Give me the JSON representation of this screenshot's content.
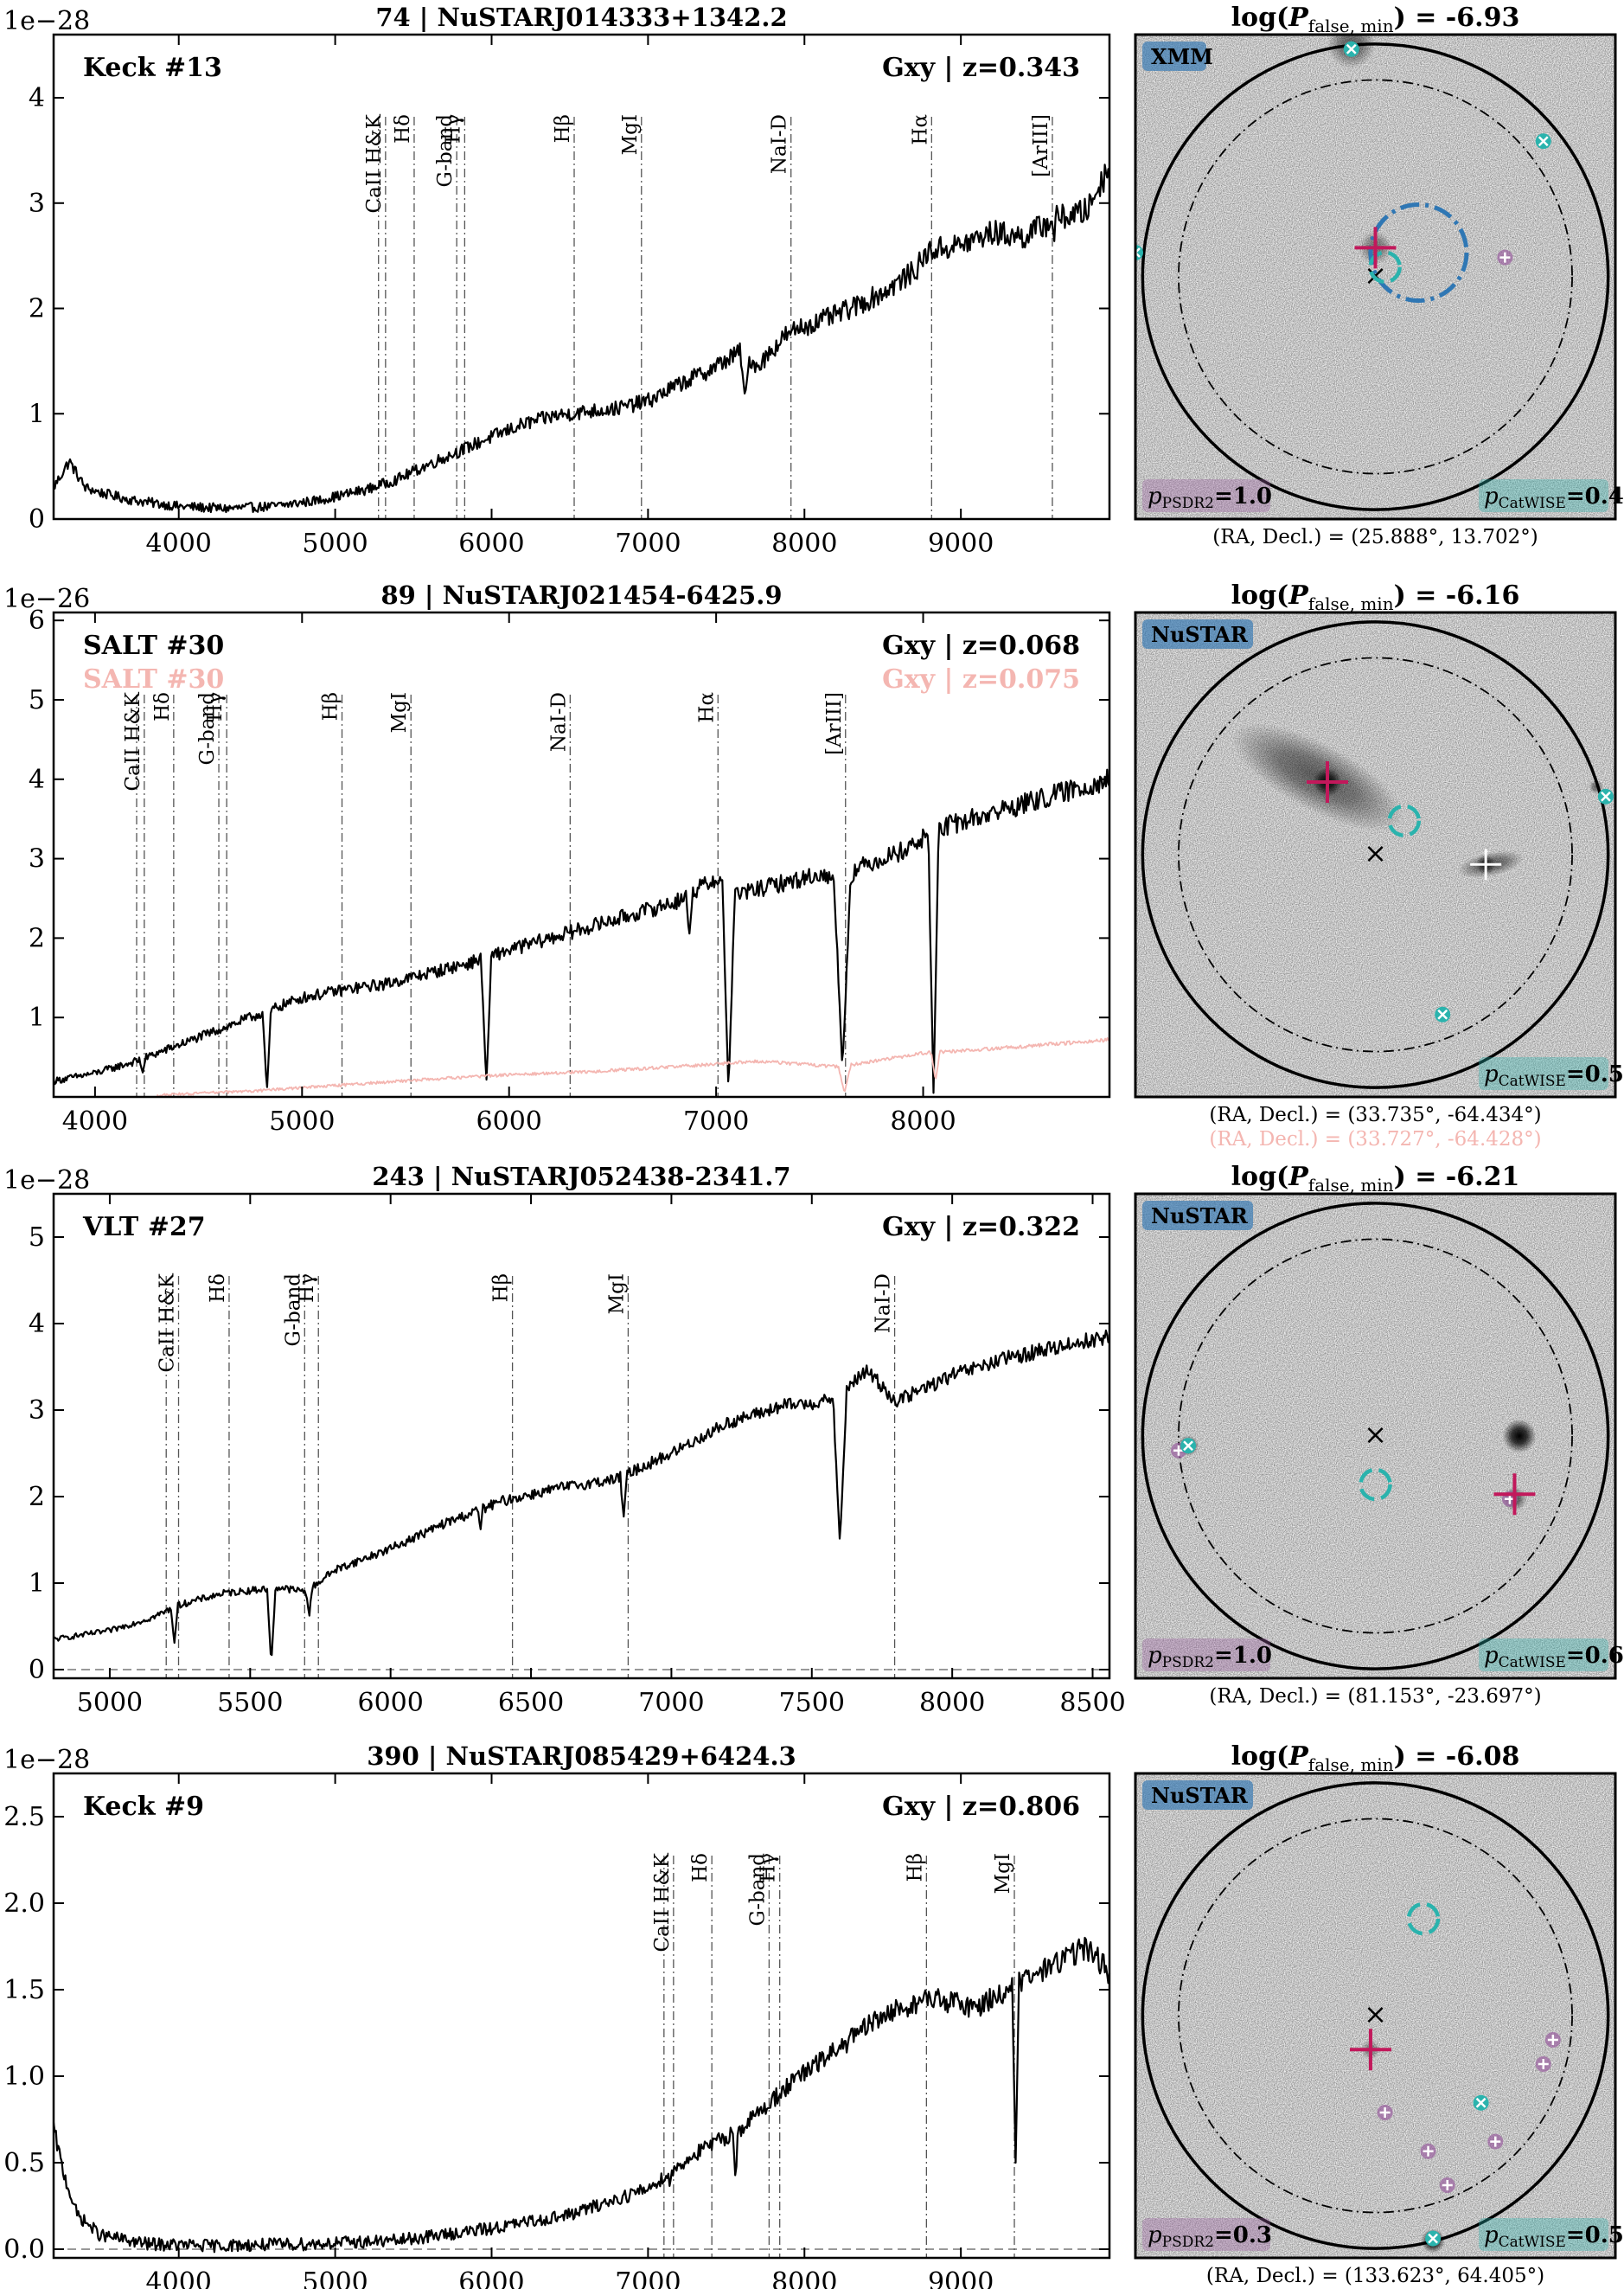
{
  "figure": {
    "colors": {
      "main": "#000000",
      "alt": "#f4b6b1",
      "magenta": "#c2185b",
      "cyan": "#2ab3ad",
      "blue": "#2f77b4",
      "purple": "#9a5fa0"
    }
  },
  "chart_data": [
    {
      "type": "line",
      "title": "74 | NuSTARJ014333+1342.2",
      "offset_text": "1e−28",
      "xlim": [
        3200,
        9950
      ],
      "ylim": [
        0,
        4.6
      ],
      "xticks": [
        4000,
        5000,
        6000,
        7000,
        8000,
        9000
      ],
      "xtick_labels": [
        "4000",
        "5000",
        "6000",
        "7000",
        "8000",
        "9000"
      ],
      "yticks": [
        0,
        1,
        2,
        3,
        4
      ],
      "ytick_labels": [
        "0",
        "1",
        "2",
        "3",
        "4"
      ],
      "zero_line": true,
      "labels": [
        {
          "text": "Keck #13",
          "pos": "top-left",
          "color": "#000000"
        },
        {
          "text": "Gxy | z=0.343",
          "pos": "top-right",
          "color": "#000000"
        }
      ],
      "spectral_lines": [
        {
          "name": "CaII H&K",
          "wl": [
            5277,
            5322
          ]
        },
        {
          "name": "Hδ",
          "wl": [
            5505
          ]
        },
        {
          "name": "G-band",
          "wl": [
            5777
          ]
        },
        {
          "name": "Hγ",
          "wl": [
            5828
          ]
        },
        {
          "name": "Hβ",
          "wl": [
            6528
          ]
        },
        {
          "name": "MgI",
          "wl": [
            6958
          ]
        },
        {
          "name": "NaI-D",
          "wl": [
            7914
          ]
        },
        {
          "name": "Hα",
          "wl": [
            8813
          ]
        },
        {
          "name": "[ArIII]",
          "wl": [
            9585
          ]
        }
      ],
      "series": [
        {
          "color": "#000000",
          "x": [
            3200,
            3300,
            3400,
            3500,
            3700,
            4000,
            4300,
            4600,
            4900,
            5200,
            5400,
            5600,
            5800,
            6000,
            6200,
            6400,
            6600,
            6800,
            7000,
            7200,
            7400,
            7600,
            7700,
            7900,
            8100,
            8300,
            8500,
            8700,
            8800,
            9000,
            9200,
            9400,
            9600,
            9800,
            9950
          ],
          "y": [
            0.3,
            0.55,
            0.3,
            0.25,
            0.18,
            0.12,
            0.1,
            0.12,
            0.18,
            0.28,
            0.38,
            0.52,
            0.65,
            0.78,
            0.9,
            0.98,
            1.02,
            1.05,
            1.12,
            1.28,
            1.42,
            1.6,
            1.45,
            1.78,
            1.88,
            2.0,
            2.15,
            2.35,
            2.55,
            2.6,
            2.72,
            2.68,
            2.85,
            2.92,
            3.35
          ],
          "dips": [
            [
              7620,
              1.15,
              30
            ],
            [
              7910,
              1.75,
              20
            ],
            [
              9595,
              2.6,
              10
            ]
          ],
          "noise": 0.1
        }
      ],
      "footer": [],
      "side": {
        "title_prefix": "log(",
        "title_sub": "false, min",
        "title_value": ") = -6.93",
        "tag": "XMM",
        "tag_color": "#2f77b4",
        "psdr2": "1.0",
        "catwise": "0.4",
        "coords": [
          {
            "text": "(RA, Decl.) = (25.888°, 13.702°)",
            "color": "#000000"
          }
        ],
        "blue_circle": [
          0.59,
          0.45,
          0.1
        ],
        "cyan_arc": [
          0.52,
          0.48
        ],
        "magenta_cross": [
          0.5,
          0.44
        ],
        "cyan_points": [
          [
            0.45,
            0.03
          ],
          [
            0.85,
            0.22
          ],
          [
            0.0,
            0.45
          ]
        ],
        "purple_points": [
          [
            0.77,
            0.46
          ]
        ],
        "blobs": [
          [
            0.45,
            0.02,
            0.05,
            0.55
          ],
          [
            0.5,
            0.44,
            0.035,
            0.45
          ]
        ]
      }
    },
    {
      "type": "line",
      "title": "89 | NuSTARJ021454-6425.9",
      "offset_text": "1e−26",
      "xlim": [
        3800,
        8900
      ],
      "ylim": [
        0,
        6.1
      ],
      "xticks": [
        4000,
        5000,
        6000,
        7000,
        8000
      ],
      "xtick_labels": [
        "4000",
        "5000",
        "6000",
        "7000",
        "8000"
      ],
      "yticks": [
        1,
        2,
        3,
        4,
        5,
        6
      ],
      "ytick_labels": [
        "1",
        "2",
        "3",
        "4",
        "5",
        "6"
      ],
      "zero_line": false,
      "labels": [
        {
          "text": "SALT #30",
          "pos": "top-left",
          "color": "#000000"
        },
        {
          "text": "Gxy | z=0.068",
          "pos": "top-right",
          "color": "#000000"
        },
        {
          "text": "SALT #30",
          "pos": "top-left-2",
          "color": "#f4b6b1"
        },
        {
          "text": "Gxy | z=0.075",
          "pos": "top-right-2",
          "color": "#f4b6b1"
        }
      ],
      "spectral_lines": [
        {
          "name": "CaII H&K",
          "wl": [
            4201,
            4238
          ]
        },
        {
          "name": "Hδ",
          "wl": [
            4380
          ]
        },
        {
          "name": "G-band",
          "wl": [
            4598
          ]
        },
        {
          "name": "Hγ",
          "wl": [
            4636
          ]
        },
        {
          "name": "Hβ",
          "wl": [
            5193
          ]
        },
        {
          "name": "MgI",
          "wl": [
            5526
          ]
        },
        {
          "name": "NaI-D",
          "wl": [
            6295
          ]
        },
        {
          "name": "Hα",
          "wl": [
            7009
          ]
        },
        {
          "name": "[ArIII]",
          "wl": [
            7625
          ]
        }
      ],
      "series": [
        {
          "color": "#000000",
          "x": [
            3800,
            4000,
            4200,
            4400,
            4600,
            4800,
            5000,
            5200,
            5400,
            5600,
            5800,
            6000,
            6200,
            6400,
            6600,
            6800,
            7000,
            7100,
            7300,
            7500,
            7600,
            7700,
            7900,
            8000,
            8100,
            8300,
            8500,
            8700,
            8900
          ],
          "y": [
            0.2,
            0.3,
            0.45,
            0.65,
            0.85,
            1.05,
            1.25,
            1.35,
            1.42,
            1.55,
            1.68,
            1.85,
            2.0,
            2.15,
            2.3,
            2.45,
            2.75,
            2.55,
            2.68,
            2.8,
            2.7,
            2.9,
            3.1,
            3.25,
            3.4,
            3.55,
            3.7,
            3.85,
            4.0
          ],
          "dips": [
            [
              4830,
              0.05,
              20
            ],
            [
              5890,
              0.15,
              25
            ],
            [
              7060,
              0.05,
              30
            ],
            [
              7610,
              0.35,
              40
            ],
            [
              8050,
              0.05,
              25
            ],
            [
              4230,
              0.3,
              15
            ],
            [
              6870,
              2.0,
              15
            ]
          ],
          "noise": 0.09
        },
        {
          "color": "#f4b6b1",
          "x": [
            4300,
            4800,
            5200,
            5600,
            6000,
            6400,
            6800,
            7200,
            7600,
            8000,
            8400,
            8900
          ],
          "y": [
            0.02,
            0.08,
            0.15,
            0.22,
            0.28,
            0.32,
            0.38,
            0.45,
            0.38,
            0.55,
            0.62,
            0.72
          ],
          "dips": [
            [
              7620,
              0.05,
              30
            ],
            [
              8060,
              0.2,
              20
            ]
          ],
          "noise": 0.04
        }
      ],
      "footer": [],
      "side": {
        "title_prefix": "log(",
        "title_sub": "false, min",
        "title_value": ") = -6.16",
        "tag": "NuSTAR",
        "tag_color": "#2f77b4",
        "psdr2": "",
        "catwise": "0.5",
        "coords": [
          {
            "text": "(RA, Decl.) = (33.735°, -64.434°)",
            "color": "#000000"
          },
          {
            "text": "(RA, Decl.) = (33.727°, -64.428°)",
            "color": "#f4b6b1"
          }
        ],
        "blue_circle": null,
        "cyan_arc": [
          0.56,
          0.43
        ],
        "magenta_cross": [
          0.4,
          0.35
        ],
        "white_cross": [
          0.73,
          0.52
        ],
        "cyan_points": [
          [
            0.98,
            0.38
          ],
          [
            0.64,
            0.83
          ]
        ],
        "purple_points": [],
        "galaxy": [
          [
            0.38,
            0.34,
            0.2,
            0.07,
            28
          ],
          [
            0.74,
            0.52,
            0.07,
            0.025,
            -12
          ]
        ],
        "blobs": [
          [
            0.4,
            0.35,
            0.03,
            0.9
          ],
          [
            0.73,
            0.52,
            0.02,
            0.7
          ],
          [
            0.96,
            0.36,
            0.015,
            0.5
          ]
        ]
      }
    },
    {
      "type": "line",
      "title": "243 | NuSTARJ052438-2341.7",
      "offset_text": "1e−28",
      "xlim": [
        4800,
        8560
      ],
      "ylim": [
        -0.1,
        5.5
      ],
      "xticks": [
        5000,
        5500,
        6000,
        6500,
        7000,
        7500,
        8000,
        8500
      ],
      "xtick_labels": [
        "5000",
        "5500",
        "6000",
        "6500",
        "7000",
        "7500",
        "8000",
        "8500"
      ],
      "yticks": [
        0,
        1,
        2,
        3,
        4,
        5
      ],
      "ytick_labels": [
        "0",
        "1",
        "2",
        "3",
        "4",
        "5"
      ],
      "zero_line": true,
      "labels": [
        {
          "text": "VLT #27",
          "pos": "top-left",
          "color": "#000000"
        },
        {
          "text": "Gxy | z=0.322",
          "pos": "top-right",
          "color": "#000000"
        }
      ],
      "spectral_lines": [
        {
          "name": "CaII H&K",
          "wl": [
            5201,
            5245
          ]
        },
        {
          "name": "Hδ",
          "wl": [
            5425
          ]
        },
        {
          "name": "G-band",
          "wl": [
            5694
          ]
        },
        {
          "name": "Hγ",
          "wl": [
            5743
          ]
        },
        {
          "name": "Hβ",
          "wl": [
            6434
          ]
        },
        {
          "name": "MgI",
          "wl": [
            6846
          ]
        },
        {
          "name": "NaI-D",
          "wl": [
            7795
          ]
        }
      ],
      "series": [
        {
          "color": "#000000",
          "x": [
            4800,
            5000,
            5150,
            5250,
            5400,
            5600,
            5700,
            5800,
            6000,
            6200,
            6400,
            6600,
            6800,
            6900,
            7000,
            7200,
            7400,
            7550,
            7700,
            7800,
            8000,
            8200,
            8400,
            8560
          ],
          "y": [
            0.35,
            0.45,
            0.6,
            0.75,
            0.88,
            0.95,
            0.9,
            1.15,
            1.4,
            1.7,
            1.95,
            2.1,
            2.2,
            2.35,
            2.5,
            2.85,
            3.05,
            3.1,
            3.45,
            3.1,
            3.4,
            3.6,
            3.75,
            3.85
          ],
          "dips": [
            [
              5575,
              0.05,
              15
            ],
            [
              5230,
              0.3,
              12
            ],
            [
              5710,
              0.6,
              10
            ],
            [
              7600,
              1.45,
              25
            ],
            [
              6830,
              1.75,
              12
            ],
            [
              6320,
              1.6,
              8
            ]
          ],
          "noise": 0.06
        }
      ],
      "footer": [],
      "side": {
        "title_prefix": "log(",
        "title_sub": "false, min",
        "title_value": ") = -6.21",
        "tag": "NuSTAR",
        "tag_color": "#2f77b4",
        "psdr2": "1.0",
        "catwise": "0.6",
        "coords": [
          {
            "text": "(RA, Decl.) = (81.153°, -23.697°)",
            "color": "#000000"
          }
        ],
        "blue_circle": null,
        "cyan_arc": [
          0.5,
          0.6
        ],
        "magenta_cross": [
          0.79,
          0.62
        ],
        "cyan_points": [
          [
            0.11,
            0.52
          ]
        ],
        "purple_points": [
          [
            0.09,
            0.53
          ],
          [
            0.78,
            0.63
          ]
        ],
        "blobs": [
          [
            0.8,
            0.5,
            0.035,
            1.0
          ],
          [
            0.11,
            0.52,
            0.022,
            0.7
          ],
          [
            0.79,
            0.63,
            0.025,
            0.6
          ]
        ]
      }
    },
    {
      "type": "line",
      "title": "390 | NuSTARJ085429+6424.3",
      "offset_text": "1e−28",
      "xlim": [
        3200,
        9950
      ],
      "ylim": [
        -0.05,
        2.75
      ],
      "xticks": [
        4000,
        5000,
        6000,
        7000,
        8000,
        9000
      ],
      "xtick_labels": [
        "4000",
        "5000",
        "6000",
        "7000",
        "8000",
        "9000"
      ],
      "yticks": [
        0,
        0.5,
        1.0,
        1.5,
        2.0,
        2.5
      ],
      "ytick_labels": [
        "0.0",
        "0.5",
        "1.0",
        "1.5",
        "2.0",
        "2.5"
      ],
      "zero_line": true,
      "labels": [
        {
          "text": "Keck #9",
          "pos": "top-left",
          "color": "#000000"
        },
        {
          "text": "Gxy | z=0.806",
          "pos": "top-right",
          "color": "#000000"
        }
      ],
      "spectral_lines": [
        {
          "name": "CaII H&K",
          "wl": [
            7102,
            7163
          ]
        },
        {
          "name": "Hδ",
          "wl": [
            7408
          ]
        },
        {
          "name": "G-band",
          "wl": [
            7774
          ]
        },
        {
          "name": "Hγ",
          "wl": [
            7842
          ]
        },
        {
          "name": "Hβ",
          "wl": [
            8780
          ]
        },
        {
          "name": "MgI",
          "wl": [
            9342
          ]
        }
      ],
      "series": [
        {
          "color": "#000000",
          "x": [
            3200,
            3260,
            3350,
            3500,
            3800,
            4200,
            4800,
            5400,
            6000,
            6500,
            7000,
            7300,
            7600,
            7900,
            8200,
            8500,
            8800,
            9100,
            9400,
            9600,
            9800,
            9950
          ],
          "y": [
            0.7,
            0.45,
            0.2,
            0.08,
            0.03,
            0.02,
            0.03,
            0.05,
            0.12,
            0.2,
            0.35,
            0.55,
            0.7,
            0.95,
            1.15,
            1.35,
            1.45,
            1.4,
            1.55,
            1.65,
            1.75,
            1.6
          ],
          "dips": [
            [
              9350,
              0.5,
              22
            ],
            [
              7560,
              0.38,
              15
            ],
            [
              7140,
              0.35,
              12
            ]
          ],
          "noise": 0.08
        }
      ],
      "footer": [],
      "side": {
        "title_prefix": "log(",
        "title_sub": "false, min",
        "title_value": ") = -6.08",
        "tag": "NuSTAR",
        "tag_color": "#2f77b4",
        "psdr2": "0.3",
        "catwise": "0.5",
        "coords": [
          {
            "text": "(RA, Decl.) = (133.623°, 64.405°)",
            "color": "#000000"
          }
        ],
        "blue_circle": null,
        "cyan_arc": [
          0.6,
          0.3
        ],
        "magenta_cross": [
          0.49,
          0.57
        ],
        "cyan_points": [
          [
            0.72,
            0.68
          ],
          [
            0.62,
            0.96
          ]
        ],
        "purple_points": [
          [
            0.87,
            0.55
          ],
          [
            0.52,
            0.7
          ],
          [
            0.61,
            0.78
          ],
          [
            0.75,
            0.76
          ],
          [
            0.65,
            0.85
          ],
          [
            0.85,
            0.6
          ]
        ],
        "blobs": [
          [
            0.62,
            0.965,
            0.025,
            1.0
          ],
          [
            0.49,
            0.57,
            0.02,
            0.4
          ]
        ]
      }
    }
  ]
}
